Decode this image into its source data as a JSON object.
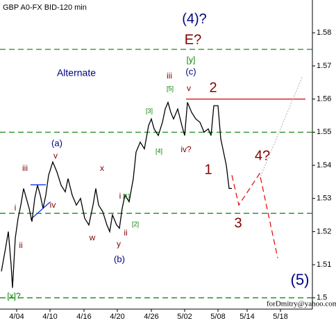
{
  "chart_data": {
    "type": "line",
    "title": "GBP A0-FX BID-120 min",
    "xlim": [
      0,
      112.5
    ],
    "ylim": [
      1.4966,
      1.5899
    ],
    "xticks": [
      {
        "value": 6,
        "label": "4/04"
      },
      {
        "value": 18,
        "label": "4/10"
      },
      {
        "value": 30.25,
        "label": "4/16"
      },
      {
        "value": 42.25,
        "label": "4/20"
      },
      {
        "value": 54.5,
        "label": "4/26"
      },
      {
        "value": 66.5,
        "label": "5/02"
      },
      {
        "value": 78.5,
        "label": "5/08"
      },
      {
        "value": 89,
        "label": "5/14"
      },
      {
        "value": 101,
        "label": "5/18"
      }
    ],
    "yticks": [
      1.5,
      1.51,
      1.52,
      1.53,
      1.54,
      1.55,
      1.56,
      1.57,
      1.58
    ],
    "series": [
      {
        "color": "#000000",
        "style": "solid",
        "x": [
          0.5,
          2,
          3,
          4,
          4.5,
          5.5,
          6.5,
          7.5,
          8.5,
          9.5,
          10.5,
          11.5,
          12.5,
          13.5,
          14.5,
          15.5,
          16.5,
          17.5,
          19,
          20.5,
          22,
          23.5,
          24.5,
          26,
          27.5,
          29,
          30.5,
          32,
          33.5,
          34.5,
          35.5,
          37,
          38.5,
          39.5,
          40.5,
          42,
          43,
          44,
          45,
          46.5,
          48,
          49,
          50.5,
          52,
          53.5,
          54.5,
          55.5,
          57,
          58.5,
          59.5,
          60.5,
          61.5,
          62.5,
          64,
          65.5,
          66.5,
          67.5,
          69,
          70.5,
          72,
          73.5,
          75,
          76,
          77,
          78.5,
          79.5,
          80.5,
          81.5,
          82.5,
          83.5
        ],
        "values": [
          1.508,
          1.515,
          1.52,
          1.51,
          1.503,
          1.518,
          1.524,
          1.528,
          1.533,
          1.53,
          1.527,
          1.523,
          1.53,
          1.534,
          1.531,
          1.527,
          1.531,
          1.537,
          1.541,
          1.538,
          1.534,
          1.532,
          1.536,
          1.531,
          1.528,
          1.53,
          1.524,
          1.522,
          1.528,
          1.533,
          1.528,
          1.526,
          1.522,
          1.52,
          1.525,
          1.522,
          1.521,
          1.527,
          1.531,
          1.529,
          1.536,
          1.544,
          1.547,
          1.545,
          1.552,
          1.554,
          1.551,
          1.549,
          1.553,
          1.557,
          1.559,
          1.556,
          1.554,
          1.557,
          1.552,
          1.549,
          1.559,
          1.556,
          1.554,
          1.553,
          1.55,
          1.551,
          1.549,
          1.558,
          1.558,
          1.548,
          1.544,
          1.54,
          1.533,
          1.533
        ]
      },
      {
        "color": "#dd0000",
        "style": "dashed",
        "x": [
          83.5,
          86,
          93.5,
          100
        ],
        "values": [
          1.537,
          1.528,
          1.5375,
          1.512
        ]
      },
      {
        "color": "#bbbbbb",
        "style": "dotted",
        "x": [
          93.5,
          109
        ],
        "values": [
          1.536,
          1.567
        ]
      }
    ],
    "levels": [
      {
        "value": 1.575,
        "color": "#008000",
        "style": "dashed"
      },
      {
        "value": 1.55,
        "color": "#008000",
        "style": "dashed"
      },
      {
        "value": 1.5255,
        "color": "#008000",
        "style": "dashed"
      },
      {
        "value": 1.5,
        "color": "#008000",
        "style": "dashed"
      },
      {
        "value": 1.56,
        "color": "#dd0000",
        "style": "solid",
        "x": [
          67,
          110
        ]
      }
    ],
    "annotations": [
      {
        "text": "(4)?",
        "color": "#000080"
      },
      {
        "text": "E?",
        "color": "#800000"
      },
      {
        "text": "[y]",
        "color": "#008000"
      },
      {
        "text": "(c)",
        "color": "#000080"
      },
      {
        "text": "iii",
        "color": "#800000"
      },
      {
        "text": "[5]",
        "color": "#008000"
      },
      {
        "text": "v",
        "color": "#800000"
      },
      {
        "text": "2",
        "color": "#800000"
      },
      {
        "text": "Alternate",
        "color": "#000080"
      },
      {
        "text": "[3]",
        "color": "#008000"
      },
      {
        "text": "[4]",
        "color": "#008000"
      },
      {
        "text": "iv?",
        "color": "#800000"
      },
      {
        "text": "1",
        "color": "#800000"
      },
      {
        "text": "4?",
        "color": "#800000"
      },
      {
        "text": "(a)",
        "color": "#000080"
      },
      {
        "text": "v",
        "color": "#800000"
      },
      {
        "text": "iii",
        "color": "#800000"
      },
      {
        "text": "x",
        "color": "#800000"
      },
      {
        "text": "i",
        "color": "#800000"
      },
      {
        "text": "iv",
        "color": "#800000"
      },
      {
        "text": "i",
        "color": "#800000"
      },
      {
        "text": "[1]",
        "color": "#008000"
      },
      {
        "text": "ii",
        "color": "#800000"
      },
      {
        "text": "w",
        "color": "#800000"
      },
      {
        "text": "[2]",
        "color": "#008000"
      },
      {
        "text": "ii",
        "color": "#800000"
      },
      {
        "text": "y",
        "color": "#800000"
      },
      {
        "text": "(b)",
        "color": "#000080"
      },
      {
        "text": "3",
        "color": "#800000"
      },
      {
        "text": "(5)",
        "color": "#000080"
      },
      {
        "text": "[x]?",
        "color": "#008000"
      }
    ],
    "watermark": "forDmitry@yahoo.com"
  }
}
